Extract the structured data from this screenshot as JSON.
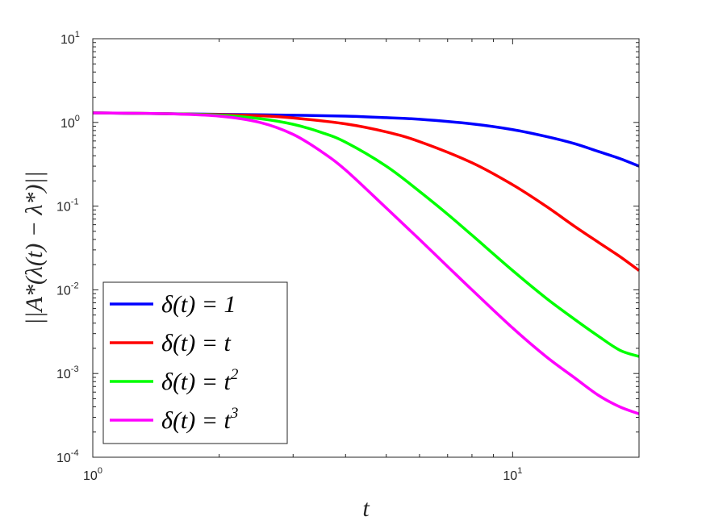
{
  "chart_data": {
    "type": "line",
    "xscale": "log",
    "yscale": "log",
    "xlim": [
      1,
      20
    ],
    "ylim": [
      0.0001,
      10
    ],
    "xlabel": "t",
    "ylabel": "||A*(λ(t) − λ*)||",
    "xticks": [
      {
        "value": 1,
        "base": "10",
        "exp": "0"
      },
      {
        "value": 10,
        "base": "10",
        "exp": "1"
      }
    ],
    "yticks": [
      {
        "value": 0.0001,
        "base": "10",
        "exp": "-4"
      },
      {
        "value": 0.001,
        "base": "10",
        "exp": "-3"
      },
      {
        "value": 0.01,
        "base": "10",
        "exp": "-2"
      },
      {
        "value": 0.1,
        "base": "10",
        "exp": "-1"
      },
      {
        "value": 1,
        "base": "10",
        "exp": "0"
      },
      {
        "value": 10,
        "base": "10",
        "exp": "1"
      }
    ],
    "grid": false,
    "legend_position": "bottom-left",
    "series": [
      {
        "name": "δ(t) = 1",
        "label_parts": [
          "δ(t) = 1",
          ""
        ],
        "color": "#0000ff",
        "x": [
          1,
          1.5,
          2,
          3,
          4,
          5,
          6,
          8,
          10,
          12,
          14,
          16,
          18,
          20
        ],
        "y": [
          1.3,
          1.27,
          1.25,
          1.22,
          1.19,
          1.14,
          1.09,
          0.96,
          0.82,
          0.68,
          0.56,
          0.45,
          0.37,
          0.3
        ]
      },
      {
        "name": "δ(t) = t",
        "label_parts": [
          "δ(t) = t",
          ""
        ],
        "color": "#ff0000",
        "x": [
          1,
          1.5,
          2,
          2.5,
          3,
          4,
          5,
          6,
          8,
          10,
          12,
          14,
          16,
          18,
          20
        ],
        "y": [
          1.3,
          1.27,
          1.24,
          1.2,
          1.13,
          0.96,
          0.77,
          0.59,
          0.33,
          0.18,
          0.1,
          0.058,
          0.037,
          0.025,
          0.017
        ]
      },
      {
        "name": "δ(t) = t²",
        "label_parts": [
          "δ(t) = t",
          "2"
        ],
        "color": "#00ff00",
        "x": [
          1,
          1.5,
          2,
          2.5,
          3,
          3.5,
          4,
          5,
          6,
          7,
          8,
          10,
          12,
          14,
          16,
          18,
          20
        ],
        "y": [
          1.3,
          1.27,
          1.22,
          1.11,
          0.95,
          0.76,
          0.58,
          0.3,
          0.15,
          0.08,
          0.045,
          0.017,
          0.008,
          0.0045,
          0.0028,
          0.0019,
          0.0016
        ]
      },
      {
        "name": "δ(t) = t³",
        "label_parts": [
          "δ(t) = t",
          "3"
        ],
        "color": "#ff00ff",
        "x": [
          1,
          1.5,
          2,
          2.5,
          3,
          3.5,
          4,
          5,
          6,
          7,
          8,
          10,
          12,
          14,
          16,
          18,
          20
        ],
        "y": [
          1.3,
          1.27,
          1.19,
          1.0,
          0.72,
          0.45,
          0.27,
          0.095,
          0.04,
          0.019,
          0.01,
          0.0035,
          0.0016,
          0.0009,
          0.00055,
          0.0004,
          0.00033
        ]
      }
    ]
  }
}
